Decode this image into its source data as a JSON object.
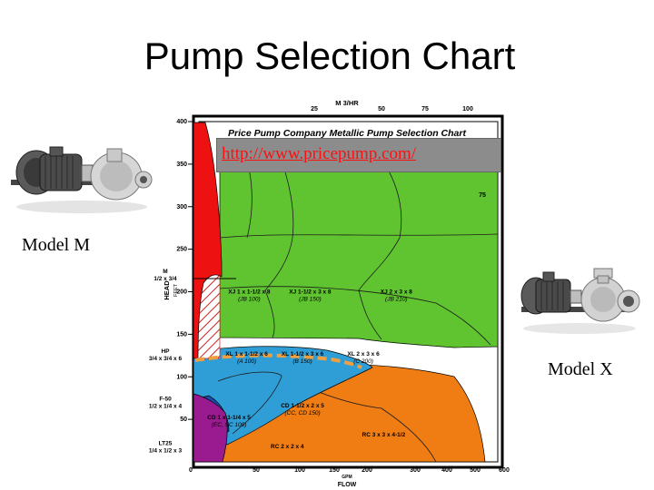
{
  "slide": {
    "title": "Pump Selection Chart",
    "url": "http://www.pricepump.com/",
    "model_m_caption": "Model M",
    "model_x_caption": "Model X"
  },
  "colors": {
    "red": "#ee1111",
    "green": "#5fc42f",
    "blue": "#2f9ed6",
    "orange": "#f07d14",
    "purple": "#9a1a8f",
    "dark_blue": "#1b4aa8",
    "hatch": "#d12020",
    "dashed_line": "#f0a040"
  },
  "chart_data": {
    "type": "area",
    "title": "Price Pump Company Metallic Pump Selection Chart",
    "xlabel": "FLOW",
    "xlabel_unit": "GPM",
    "ylabel": "HEAD",
    "ylabel_unit": "FEET",
    "top_axis_label": "M 3/HR",
    "x_ticks": [
      "0",
      "50",
      "100",
      "150",
      "200",
      "300",
      "400",
      "500",
      "600"
    ],
    "y_ticks": [
      "400",
      "350",
      "300",
      "250",
      "200",
      "150",
      "100",
      "50"
    ],
    "top_ticks": [
      "25",
      "50",
      "75",
      "100"
    ],
    "right_ticks": [
      "75"
    ],
    "xlim": [
      0,
      600
    ],
    "ylim": [
      0,
      400
    ],
    "left_model_labels": [
      {
        "lines": [
          "M",
          "1/2 x 3/4"
        ],
        "y": 222
      },
      {
        "lines": [
          "HP",
          "3/4 x 3/4 x 6"
        ],
        "y": 128
      },
      {
        "lines": [
          "F-50",
          "1/2 x 1/4 x 4"
        ],
        "y": 72
      },
      {
        "lines": [
          "LT25",
          "1/4 x 1/2 x 3"
        ],
        "y": 20
      }
    ],
    "region_labels": [
      {
        "lines": [
          "XJ 1 x 1-1/2 x 8",
          "(JB 100)"
        ],
        "x": 110,
        "y": 198
      },
      {
        "lines": [
          "XJ 1-1/2 x 3 x 8",
          "(JB 150)"
        ],
        "x": 230,
        "y": 198
      },
      {
        "lines": [
          "XJ 2 x 3 x 8",
          "(JB 210)"
        ],
        "x": 400,
        "y": 198
      },
      {
        "lines": [
          "XL 1 x 1-1/2 x 6",
          "(A 100)"
        ],
        "x": 105,
        "y": 125
      },
      {
        "lines": [
          "XL 1-1/2 x 3 x 6",
          "(B 150)"
        ],
        "x": 215,
        "y": 125
      },
      {
        "lines": [
          "XL 2 x 3 x 6",
          "(C 200)"
        ],
        "x": 335,
        "y": 125
      },
      {
        "lines": [
          "CD 1-1/2 x 2 x 5",
          "(CC, CD 150)"
        ],
        "x": 215,
        "y": 64
      },
      {
        "lines": [
          "CD 1 x 1-1/4 x 5",
          "(EC, SC 100)"
        ],
        "x": 70,
        "y": 50
      },
      {
        "lines": [
          "RC 3 x 3 x 4-1/2"
        ],
        "x": 375,
        "y": 30
      },
      {
        "lines": [
          "RC 2 x 2 x 4"
        ],
        "x": 185,
        "y": 16
      }
    ]
  }
}
